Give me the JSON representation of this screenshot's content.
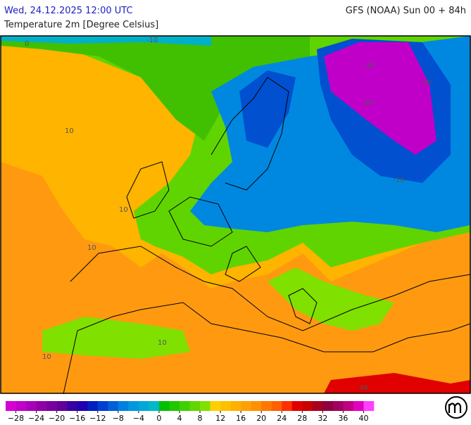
{
  "header": {
    "left": "Wed, 24.12.2025 12:00 UTC",
    "right": "GFS (NOAA) Sun 00 + 84h",
    "subtitle": "Temperature 2m [Degree Celsius]"
  },
  "map": {
    "contour_labels": [
      0,
      -10,
      -30,
      -20,
      -10,
      10,
      10,
      10,
      -10,
      10,
      10,
      40
    ]
  },
  "legend": {
    "range": [
      -30,
      42
    ],
    "colors": [
      "#d400d4",
      "#c000c8",
      "#a800b8",
      "#9000a8",
      "#7800a0",
      "#600098",
      "#3800a0",
      "#2000b0",
      "#0020c0",
      "#0040d0",
      "#0060d8",
      "#0080e0",
      "#0098e0",
      "#00a8d8",
      "#00b8c8",
      "#00c000",
      "#20c800",
      "#40d000",
      "#60d800",
      "#80e000",
      "#ffd000",
      "#ffc000",
      "#ffb000",
      "#ffa000",
      "#ff9000",
      "#ff7800",
      "#ff6000",
      "#ff3000",
      "#e00000",
      "#c80000",
      "#a80020",
      "#900040",
      "#a00060",
      "#c00080",
      "#e000c0",
      "#ff40ff"
    ],
    "ticks": [
      {
        "value": -28,
        "label": "−28"
      },
      {
        "value": -24,
        "label": "−24"
      },
      {
        "value": -20,
        "label": "−20"
      },
      {
        "value": -16,
        "label": "−16"
      },
      {
        "value": -12,
        "label": "−12"
      },
      {
        "value": -8,
        "label": "−8"
      },
      {
        "value": -4,
        "label": "−4"
      },
      0,
      4,
      8,
      12,
      16,
      20,
      24,
      28,
      32,
      36,
      40
    ]
  }
}
